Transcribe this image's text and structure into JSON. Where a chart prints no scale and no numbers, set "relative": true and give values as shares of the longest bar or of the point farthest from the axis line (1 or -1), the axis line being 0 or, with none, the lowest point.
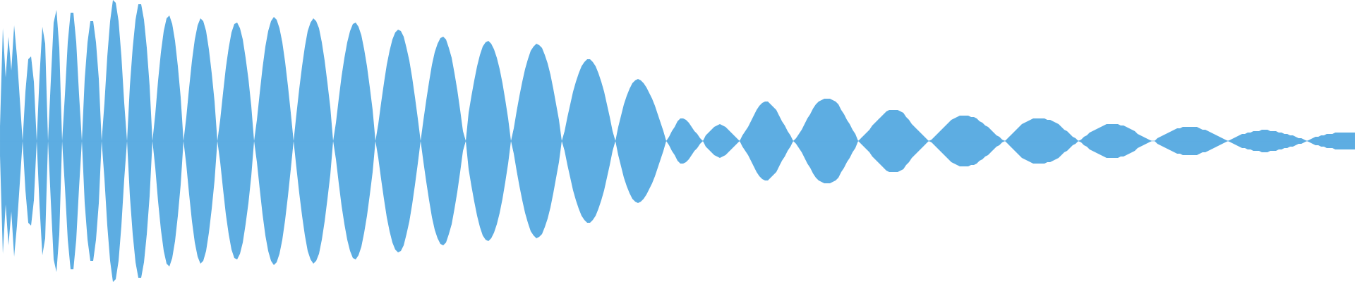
{
  "chart_data": {
    "type": "area",
    "relative": true,
    "categories": [
      null,
      null,
      null,
      null,
      null,
      null,
      null,
      null,
      null,
      null,
      null,
      null,
      null,
      null,
      null,
      null,
      null,
      null,
      null,
      null,
      null,
      null,
      null,
      null,
      null,
      null,
      null,
      null,
      null,
      null,
      null,
      null,
      null,
      null,
      null,
      null,
      null,
      null,
      null,
      null,
      null,
      null,
      null,
      null,
      null,
      null,
      null,
      null,
      null,
      null,
      null,
      null,
      null,
      null,
      null,
      null,
      null,
      null,
      null,
      null,
      null,
      null,
      null,
      null,
      null,
      null,
      null,
      null,
      null,
      null,
      null,
      null,
      null,
      null,
      null,
      null,
      null,
      null,
      null,
      null,
      null,
      null,
      null,
      null,
      null,
      null,
      null,
      null,
      null,
      null,
      null,
      null,
      null,
      null,
      null,
      null,
      null,
      null,
      null,
      null,
      null,
      null,
      null,
      null,
      null,
      null,
      null,
      null,
      null,
      null,
      null,
      null,
      null,
      null,
      null,
      null,
      null,
      null,
      null,
      null,
      null,
      null,
      null,
      null,
      null,
      null,
      null,
      null,
      null,
      null,
      null,
      null,
      null,
      null,
      null,
      null,
      null,
      null,
      null,
      null,
      null,
      null,
      null,
      null,
      null,
      null,
      null,
      null,
      null,
      null,
      null,
      null,
      null,
      null,
      null,
      null,
      null,
      null,
      null,
      null,
      null,
      null,
      null,
      null,
      null,
      null,
      null,
      null,
      null,
      null,
      null,
      null,
      null,
      null,
      null,
      null,
      null,
      null,
      null,
      null,
      null,
      null,
      null,
      null,
      null,
      null,
      null,
      null,
      null,
      null,
      null,
      null,
      null,
      null,
      null,
      null,
      null,
      null,
      null,
      null,
      null,
      null,
      null,
      null,
      null,
      null,
      null,
      null,
      null,
      null,
      null,
      null,
      null,
      null,
      null,
      null,
      null,
      null,
      null,
      null,
      null,
      null,
      null,
      null,
      null,
      null,
      null,
      null,
      null,
      null,
      null,
      null,
      null,
      null,
      null,
      null,
      null,
      null,
      null,
      null,
      null,
      null,
      null,
      null,
      null,
      null,
      null,
      null,
      null,
      null,
      null,
      null,
      null,
      null,
      null,
      null,
      null,
      null,
      null,
      null,
      null,
      null,
      null,
      null,
      null,
      null,
      null,
      null,
      null,
      null,
      null,
      null,
      null,
      null,
      null,
      null,
      null,
      null,
      null,
      null,
      null,
      null,
      null,
      null,
      null,
      null,
      null,
      null,
      null,
      null,
      null,
      null,
      null,
      null,
      null,
      null,
      null,
      null,
      null,
      null,
      null,
      null,
      null,
      null,
      null,
      null,
      null,
      null,
      null,
      null,
      null,
      null,
      null,
      null,
      null,
      null,
      null,
      null,
      null,
      null,
      null,
      null,
      null,
      null,
      null,
      null,
      null,
      null,
      null,
      null,
      null,
      null,
      null,
      null,
      null,
      null,
      null,
      null,
      null,
      null,
      null,
      null,
      null,
      null,
      null,
      null,
      null,
      null,
      null,
      null,
      null,
      null,
      null,
      null,
      null,
      null,
      null,
      null,
      null,
      null,
      null,
      null,
      null,
      null,
      null,
      null,
      null,
      null,
      null,
      null,
      null,
      null,
      null,
      null,
      null,
      null,
      null,
      null,
      null,
      null,
      null,
      null,
      null,
      null,
      null,
      null,
      null,
      null,
      null,
      null,
      null,
      null,
      null,
      null,
      null,
      null,
      null,
      null,
      null,
      null,
      null,
      null,
      null,
      null,
      null,
      null,
      null,
      null,
      null,
      null,
      null,
      null,
      null,
      null,
      null,
      null,
      null,
      null,
      null,
      null,
      null,
      null,
      null,
      null,
      null,
      null,
      null,
      null,
      null,
      null,
      null,
      null,
      null,
      null,
      null,
      null,
      null,
      null,
      null,
      null,
      null,
      null,
      null,
      null,
      null,
      null,
      null,
      null,
      null,
      null,
      null,
      null,
      null,
      null,
      null,
      null,
      null,
      null,
      null,
      null,
      null,
      null,
      null,
      null,
      null,
      null,
      null,
      null,
      null,
      null,
      null,
      null,
      null,
      null,
      null,
      null,
      null,
      null,
      null,
      null,
      null
    ],
    "ref_lines": [
      {
        "axis": "y",
        "value": 0,
        "color": "#5dade2"
      }
    ],
    "series": [
      {
        "color": "#5dade2",
        "values": [
          0.11,
          0.8,
          0.45,
          0.74,
          0.5,
          0.82,
          0.6,
          0.3,
          0,
          0.35,
          0.58,
          0.6,
          0.42,
          0,
          0.46,
          0.81,
          0.69,
          0,
          0.43,
          0.84,
          0.93,
          0.66,
          0,
          0.33,
          0.7,
          0.91,
          0.91,
          0.7,
          0.33,
          0,
          0.44,
          0.7,
          0.85,
          0.85,
          0.7,
          0.44,
          0,
          0.27,
          0.6,
          0.85,
          1,
          0.98,
          0.85,
          0.6,
          0.27,
          0,
          0.39,
          0.66,
          0.86,
          0.97,
          0.97,
          0.86,
          0.66,
          0.39,
          0,
          0.19,
          0.43,
          0.63,
          0.78,
          0.87,
          0.89,
          0.83,
          0.71,
          0.53,
          0.31,
          0,
          0.17,
          0.38,
          0.57,
          0.72,
          0.82,
          0.87,
          0.85,
          0.78,
          0.65,
          0.48,
          0.28,
          0,
          0.15,
          0.34,
          0.52,
          0.66,
          0.77,
          0.83,
          0.84,
          0.8,
          0.72,
          0.59,
          0.44,
          0.25,
          0,
          0.15,
          0.34,
          0.52,
          0.67,
          0.78,
          0.85,
          0.88,
          0.86,
          0.8,
          0.7,
          0.56,
          0.39,
          0.2,
          0,
          0.19,
          0.37,
          0.53,
          0.67,
          0.78,
          0.84,
          0.87,
          0.85,
          0.8,
          0.7,
          0.57,
          0.41,
          0.24,
          0,
          0.13,
          0.3,
          0.46,
          0.59,
          0.7,
          0.78,
          0.83,
          0.84,
          0.81,
          0.75,
          0.65,
          0.53,
          0.38,
          0.22,
          0,
          0.12,
          0.27,
          0.41,
          0.54,
          0.64,
          0.72,
          0.77,
          0.79,
          0.78,
          0.74,
          0.66,
          0.57,
          0.45,
          0.31,
          0.16,
          0,
          0.15,
          0.29,
          0.42,
          0.54,
          0.63,
          0.69,
          0.73,
          0.74,
          0.72,
          0.66,
          0.59,
          0.48,
          0.36,
          0.22,
          0.07,
          0,
          0.2,
          0.32,
          0.43,
          0.53,
          0.61,
          0.67,
          0.7,
          0.71,
          0.69,
          0.65,
          0.59,
          0.51,
          0.41,
          0.29,
          0.16,
          0,
          0.09,
          0.21,
          0.32,
          0.42,
          0.51,
          0.58,
          0.64,
          0.67,
          0.69,
          0.68,
          0.66,
          0.61,
          0.55,
          0.47,
          0.37,
          0.26,
          0.15,
          0,
          0.07,
          0.17,
          0.26,
          0.35,
          0.42,
          0.48,
          0.53,
          0.56,
          0.58,
          0.58,
          0.56,
          0.53,
          0.48,
          0.42,
          0.35,
          0.26,
          0.17,
          0.07,
          0,
          0.1,
          0.18,
          0.26,
          0.32,
          0.37,
          0.41,
          0.43,
          0.44,
          0.43,
          0.41,
          0.38,
          0.34,
          0.3,
          0.25,
          0.19,
          0.13,
          0.07,
          0,
          0.03,
          0.07,
          0.1,
          0.14,
          0.16,
          0.16,
          0.15,
          0.13,
          0.1,
          0.07,
          0.05,
          0.02,
          0,
          0.04,
          0.06,
          0.08,
          0.1,
          0.11,
          0.12,
          0.11,
          0.1,
          0.08,
          0.06,
          0.04,
          0.02,
          0,
          0.04,
          0.07,
          0.1,
          0.14,
          0.18,
          0.22,
          0.25,
          0.27,
          0.28,
          0.28,
          0.26,
          0.24,
          0.22,
          0.18,
          0.14,
          0.11,
          0.07,
          0.04,
          0,
          0.02,
          0.05,
          0.08,
          0.12,
          0.16,
          0.19,
          0.23,
          0.26,
          0.28,
          0.29,
          0.3,
          0.3,
          0.3,
          0.29,
          0.28,
          0.26,
          0.22,
          0.19,
          0.15,
          0.12,
          0.08,
          0.05,
          0,
          0.02,
          0.04,
          0.06,
          0.08,
          0.11,
          0.13,
          0.15,
          0.17,
          0.19,
          0.21,
          0.22,
          0.22,
          0.22,
          0.22,
          0.21,
          0.2,
          0.17,
          0.15,
          0.12,
          0.1,
          0.08,
          0.06,
          0.04,
          0.02,
          0,
          0.01,
          0.03,
          0.05,
          0.07,
          0.09,
          0.11,
          0.13,
          0.15,
          0.16,
          0.17,
          0.18,
          0.18,
          0.18,
          0.18,
          0.17,
          0.17,
          0.16,
          0.14,
          0.13,
          0.11,
          0.1,
          0.08,
          0.06,
          0.04,
          0.03,
          0.01,
          0,
          0.02,
          0.04,
          0.06,
          0.08,
          0.1,
          0.12,
          0.13,
          0.14,
          0.15,
          0.16,
          0.16,
          0.16,
          0.16,
          0.16,
          0.15,
          0.15,
          0.14,
          0.13,
          0.12,
          0.1,
          0.08,
          0.07,
          0.05,
          0.03,
          0.02,
          0,
          0.01,
          0.03,
          0.04,
          0.06,
          0.07,
          0.08,
          0.09,
          0.1,
          0.11,
          0.12,
          0.12,
          0.12,
          0.12,
          0.12,
          0.11,
          0.11,
          0.1,
          0.09,
          0.08,
          0.07,
          0.05,
          0.04,
          0.03,
          0.02,
          0.01,
          0,
          0,
          0.02,
          0.03,
          0.04,
          0.05,
          0.06,
          0.07,
          0.08,
          0.09,
          0.09,
          0.1,
          0.1,
          0.1,
          0.1,
          0.1,
          0.1,
          0.09,
          0.08,
          0.08,
          0.07,
          0.06,
          0.05,
          0.04,
          0.03,
          0.02,
          0.01,
          0,
          0.01,
          0.02,
          0.03,
          0.04,
          0.05,
          0.05,
          0.06,
          0.06,
          0.07,
          0.07,
          0.07,
          0.08,
          0.08,
          0.08,
          0.07,
          0.07,
          0.07,
          0.06,
          0.06,
          0.05,
          0.05,
          0.04,
          0.04,
          0.03,
          0.02,
          0.02,
          0.01,
          0,
          0.01,
          0.02,
          0.03,
          0.03,
          0.04,
          0.04,
          0.05,
          0.05,
          0.05,
          0.06,
          0.06,
          0.06,
          0.06,
          0.06,
          0.06,
          0.06,
          0.06
        ]
      },
      {
        "color": "#5dade2",
        "values": [
          -0.11,
          -0.8,
          -0.45,
          -0.74,
          -0.5,
          -0.82,
          -0.6,
          -0.3,
          0,
          -0.35,
          -0.58,
          -0.6,
          -0.42,
          0,
          -0.46,
          -0.81,
          -0.69,
          0,
          -0.43,
          -0.84,
          -0.93,
          -0.66,
          0,
          -0.33,
          -0.7,
          -0.91,
          -0.91,
          -0.7,
          -0.33,
          0,
          -0.44,
          -0.7,
          -0.85,
          -0.85,
          -0.7,
          -0.44,
          0,
          -0.27,
          -0.6,
          -0.85,
          -1,
          -0.98,
          -0.85,
          -0.6,
          -0.27,
          0,
          -0.39,
          -0.66,
          -0.86,
          -0.97,
          -0.97,
          -0.86,
          -0.66,
          -0.39,
          0,
          -0.19,
          -0.43,
          -0.63,
          -0.78,
          -0.87,
          -0.89,
          -0.83,
          -0.71,
          -0.53,
          -0.31,
          0,
          -0.17,
          -0.38,
          -0.57,
          -0.72,
          -0.82,
          -0.87,
          -0.85,
          -0.78,
          -0.65,
          -0.48,
          -0.28,
          0,
          -0.15,
          -0.34,
          -0.52,
          -0.66,
          -0.77,
          -0.83,
          -0.84,
          -0.8,
          -0.72,
          -0.59,
          -0.44,
          -0.25,
          0,
          -0.15,
          -0.34,
          -0.52,
          -0.67,
          -0.78,
          -0.85,
          -0.88,
          -0.86,
          -0.8,
          -0.7,
          -0.56,
          -0.39,
          -0.2,
          0,
          -0.19,
          -0.37,
          -0.53,
          -0.67,
          -0.78,
          -0.84,
          -0.87,
          -0.85,
          -0.8,
          -0.7,
          -0.57,
          -0.41,
          -0.24,
          0,
          -0.13,
          -0.3,
          -0.46,
          -0.59,
          -0.7,
          -0.78,
          -0.83,
          -0.84,
          -0.81,
          -0.75,
          -0.65,
          -0.53,
          -0.38,
          -0.22,
          0,
          -0.12,
          -0.27,
          -0.41,
          -0.54,
          -0.64,
          -0.72,
          -0.77,
          -0.79,
          -0.78,
          -0.74,
          -0.66,
          -0.57,
          -0.45,
          -0.31,
          -0.16,
          0,
          -0.15,
          -0.29,
          -0.42,
          -0.54,
          -0.63,
          -0.69,
          -0.73,
          -0.74,
          -0.72,
          -0.66,
          -0.59,
          -0.48,
          -0.36,
          -0.22,
          -0.07,
          0,
          -0.2,
          -0.32,
          -0.43,
          -0.53,
          -0.61,
          -0.67,
          -0.7,
          -0.71,
          -0.69,
          -0.65,
          -0.59,
          -0.51,
          -0.41,
          -0.29,
          -0.16,
          0,
          -0.09,
          -0.21,
          -0.32,
          -0.42,
          -0.51,
          -0.58,
          -0.64,
          -0.67,
          -0.69,
          -0.68,
          -0.66,
          -0.61,
          -0.55,
          -0.47,
          -0.37,
          -0.26,
          -0.15,
          0,
          -0.07,
          -0.17,
          -0.26,
          -0.35,
          -0.42,
          -0.48,
          -0.53,
          -0.56,
          -0.58,
          -0.58,
          -0.56,
          -0.53,
          -0.48,
          -0.42,
          -0.35,
          -0.26,
          -0.17,
          -0.07,
          0,
          -0.1,
          -0.18,
          -0.26,
          -0.32,
          -0.37,
          -0.41,
          -0.43,
          -0.44,
          -0.43,
          -0.41,
          -0.38,
          -0.34,
          -0.3,
          -0.25,
          -0.19,
          -0.13,
          -0.07,
          0,
          -0.03,
          -0.07,
          -0.1,
          -0.14,
          -0.16,
          -0.16,
          -0.15,
          -0.13,
          -0.1,
          -0.07,
          -0.05,
          -0.02,
          0,
          -0.04,
          -0.06,
          -0.08,
          -0.1,
          -0.11,
          -0.12,
          -0.11,
          -0.1,
          -0.08,
          -0.06,
          -0.04,
          -0.02,
          0,
          -0.04,
          -0.07,
          -0.1,
          -0.14,
          -0.18,
          -0.22,
          -0.25,
          -0.27,
          -0.28,
          -0.28,
          -0.26,
          -0.24,
          -0.22,
          -0.18,
          -0.14,
          -0.11,
          -0.07,
          -0.04,
          0,
          -0.02,
          -0.05,
          -0.08,
          -0.12,
          -0.16,
          -0.19,
          -0.23,
          -0.26,
          -0.28,
          -0.29,
          -0.3,
          -0.3,
          -0.3,
          -0.29,
          -0.28,
          -0.26,
          -0.22,
          -0.19,
          -0.15,
          -0.12,
          -0.08,
          -0.05,
          0,
          -0.02,
          -0.04,
          -0.06,
          -0.08,
          -0.11,
          -0.13,
          -0.15,
          -0.17,
          -0.19,
          -0.21,
          -0.22,
          -0.22,
          -0.22,
          -0.22,
          -0.21,
          -0.2,
          -0.17,
          -0.15,
          -0.12,
          -0.1,
          -0.08,
          -0.06,
          -0.04,
          -0.02,
          0,
          -0.01,
          -0.03,
          -0.05,
          -0.07,
          -0.09,
          -0.11,
          -0.13,
          -0.15,
          -0.16,
          -0.17,
          -0.18,
          -0.18,
          -0.18,
          -0.18,
          -0.17,
          -0.17,
          -0.16,
          -0.14,
          -0.13,
          -0.11,
          -0.1,
          -0.08,
          -0.06,
          -0.04,
          -0.03,
          -0.01,
          0,
          -0.02,
          -0.04,
          -0.06,
          -0.08,
          -0.1,
          -0.12,
          -0.13,
          -0.14,
          -0.15,
          -0.16,
          -0.16,
          -0.16,
          -0.16,
          -0.16,
          -0.15,
          -0.15,
          -0.14,
          -0.13,
          -0.12,
          -0.1,
          -0.08,
          -0.07,
          -0.05,
          -0.03,
          -0.02,
          0,
          -0.01,
          -0.03,
          -0.04,
          -0.06,
          -0.07,
          -0.08,
          -0.09,
          -0.1,
          -0.11,
          -0.12,
          -0.12,
          -0.12,
          -0.12,
          -0.12,
          -0.11,
          -0.11,
          -0.1,
          -0.09,
          -0.08,
          -0.07,
          -0.05,
          -0.04,
          -0.03,
          -0.02,
          -0.01,
          0,
          0,
          -0.02,
          -0.03,
          -0.04,
          -0.05,
          -0.06,
          -0.07,
          -0.08,
          -0.09,
          -0.09,
          -0.1,
          -0.1,
          -0.1,
          -0.1,
          -0.1,
          -0.1,
          -0.09,
          -0.08,
          -0.08,
          -0.07,
          -0.06,
          -0.05,
          -0.04,
          -0.03,
          -0.02,
          -0.01,
          0,
          -0.01,
          -0.02,
          -0.03,
          -0.04,
          -0.05,
          -0.05,
          -0.06,
          -0.06,
          -0.07,
          -0.07,
          -0.07,
          -0.08,
          -0.08,
          -0.08,
          -0.07,
          -0.07,
          -0.07,
          -0.06,
          -0.06,
          -0.05,
          -0.05,
          -0.04,
          -0.04,
          -0.03,
          -0.02,
          -0.02,
          -0.01,
          0,
          -0.01,
          -0.02,
          -0.03,
          -0.03,
          -0.04,
          -0.04,
          -0.05,
          -0.05,
          -0.05,
          -0.06,
          -0.06,
          -0.06,
          -0.06,
          -0.06,
          -0.06,
          -0.06,
          -0.06
        ]
      }
    ]
  }
}
